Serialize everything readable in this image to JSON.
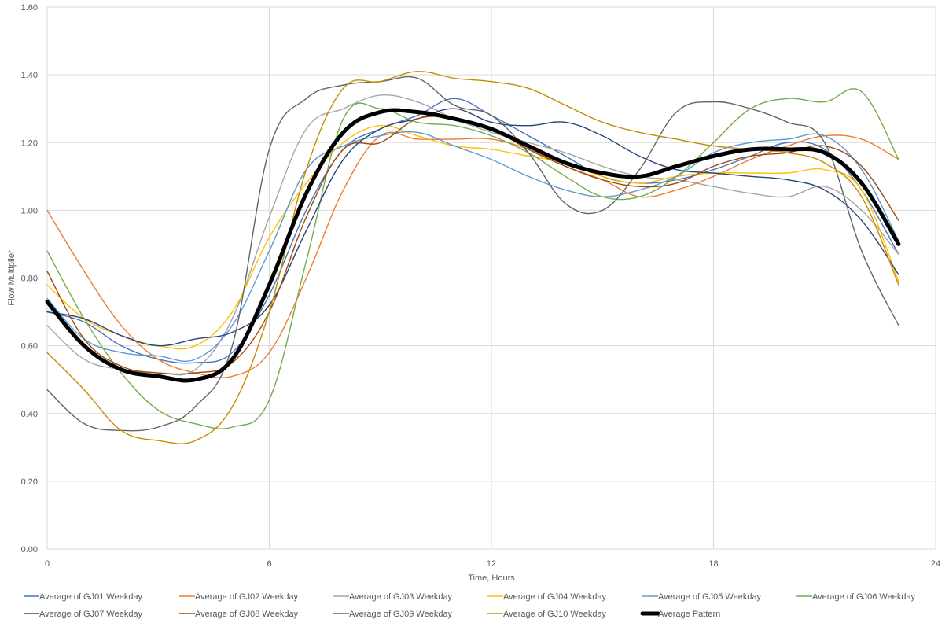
{
  "chart_data": {
    "type": "line",
    "title": "",
    "xlabel": "Time, Hours",
    "ylabel": "Flow Multiplier",
    "xlim": [
      0,
      24
    ],
    "ylim": [
      0,
      1.6
    ],
    "x_ticks": [
      0,
      6,
      12,
      18,
      24
    ],
    "y_ticks": [
      0,
      0.2,
      0.4,
      0.6,
      0.8,
      1.0,
      1.2,
      1.4,
      1.6
    ],
    "x_tick_labels": [
      "0",
      "6",
      "12",
      "18",
      "24"
    ],
    "y_tick_labels": [
      "0.00",
      "0.20",
      "0.40",
      "0.60",
      "0.80",
      "1.00",
      "1.20",
      "1.40",
      "1.60"
    ],
    "grid": true,
    "legend_position": "bottom",
    "series": [
      {
        "name": "Average of GJ01 Weekday",
        "color": "#4472c4",
        "width": 1.4,
        "x": [
          0,
          1,
          2,
          3,
          4,
          5,
          6,
          7,
          8,
          9,
          10,
          11,
          12,
          13,
          14,
          15,
          16,
          17,
          18,
          19,
          20,
          21,
          22,
          23
        ],
        "y": [
          0.7,
          0.67,
          0.6,
          0.56,
          0.55,
          0.58,
          0.75,
          1.0,
          1.18,
          1.24,
          1.28,
          1.33,
          1.28,
          1.22,
          1.16,
          1.1,
          1.08,
          1.09,
          1.12,
          1.16,
          1.2,
          1.18,
          1.06,
          0.87
        ]
      },
      {
        "name": "Average of GJ02 Weekday",
        "color": "#ed7d31",
        "width": 1.4,
        "x": [
          0,
          1,
          2,
          3,
          4,
          5,
          6,
          7,
          8,
          9,
          10,
          11,
          12,
          13,
          14,
          15,
          16,
          17,
          18,
          19,
          20,
          21,
          22,
          23
        ],
        "y": [
          1.0,
          0.82,
          0.66,
          0.56,
          0.52,
          0.51,
          0.58,
          0.8,
          1.06,
          1.22,
          1.21,
          1.21,
          1.21,
          1.18,
          1.13,
          1.09,
          1.04,
          1.06,
          1.1,
          1.15,
          1.19,
          1.22,
          1.21,
          1.15
        ]
      },
      {
        "name": "Average of GJ03 Weekday",
        "color": "#a5a5a5",
        "width": 1.4,
        "x": [
          0,
          1,
          2,
          3,
          4,
          5,
          6,
          7,
          8,
          9,
          10,
          11,
          12,
          13,
          14,
          15,
          16,
          17,
          18,
          19,
          20,
          21,
          22,
          23
        ],
        "y": [
          0.66,
          0.56,
          0.53,
          0.52,
          0.53,
          0.68,
          0.98,
          1.24,
          1.3,
          1.34,
          1.32,
          1.27,
          1.23,
          1.2,
          1.17,
          1.13,
          1.1,
          1.09,
          1.07,
          1.05,
          1.04,
          1.07,
          1.0,
          0.87
        ]
      },
      {
        "name": "Average of GJ04 Weekday",
        "color": "#ffc000",
        "width": 1.4,
        "x": [
          0,
          1,
          2,
          3,
          4,
          5,
          6,
          7,
          8,
          9,
          10,
          11,
          12,
          13,
          14,
          15,
          16,
          17,
          18,
          19,
          20,
          21,
          22,
          23
        ],
        "y": [
          0.78,
          0.68,
          0.63,
          0.6,
          0.6,
          0.7,
          0.92,
          1.08,
          1.2,
          1.25,
          1.22,
          1.19,
          1.18,
          1.16,
          1.14,
          1.1,
          1.08,
          1.1,
          1.11,
          1.11,
          1.11,
          1.12,
          1.06,
          0.79
        ]
      },
      {
        "name": "Average of GJ05 Weekday",
        "color": "#5b9bd5",
        "width": 1.4,
        "x": [
          0,
          1,
          2,
          3,
          4,
          5,
          6,
          7,
          8,
          9,
          10,
          11,
          12,
          13,
          14,
          15,
          16,
          17,
          18,
          19,
          20,
          21,
          22,
          23
        ],
        "y": [
          0.74,
          0.62,
          0.58,
          0.57,
          0.56,
          0.66,
          0.88,
          1.12,
          1.19,
          1.22,
          1.23,
          1.19,
          1.15,
          1.1,
          1.06,
          1.04,
          1.06,
          1.1,
          1.17,
          1.2,
          1.21,
          1.22,
          1.12,
          0.91
        ]
      },
      {
        "name": "Average of GJ06 Weekday",
        "color": "#70ad47",
        "width": 1.4,
        "x": [
          0,
          1,
          2,
          3,
          4,
          5,
          6,
          7,
          8,
          9,
          10,
          11,
          12,
          13,
          14,
          15,
          16,
          17,
          18,
          19,
          20,
          21,
          22,
          23
        ],
        "y": [
          0.88,
          0.68,
          0.52,
          0.41,
          0.37,
          0.36,
          0.44,
          0.85,
          1.27,
          1.3,
          1.26,
          1.25,
          1.22,
          1.17,
          1.1,
          1.04,
          1.04,
          1.1,
          1.2,
          1.3,
          1.33,
          1.32,
          1.35,
          1.15
        ]
      },
      {
        "name": "Average of GJ07 Weekday",
        "color": "#264478",
        "width": 1.4,
        "x": [
          0,
          1,
          2,
          3,
          4,
          5,
          6,
          7,
          8,
          9,
          10,
          11,
          12,
          13,
          14,
          15,
          16,
          17,
          18,
          19,
          20,
          21,
          22,
          23
        ],
        "y": [
          0.7,
          0.68,
          0.63,
          0.6,
          0.62,
          0.64,
          0.72,
          0.94,
          1.15,
          1.24,
          1.27,
          1.3,
          1.26,
          1.25,
          1.26,
          1.22,
          1.16,
          1.12,
          1.11,
          1.1,
          1.09,
          1.06,
          0.97,
          0.81
        ]
      },
      {
        "name": "Average of GJ08 Weekday",
        "color": "#9e480e",
        "width": 1.4,
        "x": [
          0,
          1,
          2,
          3,
          4,
          5,
          6,
          7,
          8,
          9,
          10,
          11,
          12,
          13,
          14,
          15,
          16,
          17,
          18,
          19,
          20,
          21,
          22,
          23
        ],
        "y": [
          0.82,
          0.62,
          0.54,
          0.52,
          0.52,
          0.55,
          0.7,
          0.98,
          1.18,
          1.2,
          1.27,
          1.27,
          1.24,
          1.18,
          1.13,
          1.09,
          1.07,
          1.08,
          1.13,
          1.16,
          1.17,
          1.19,
          1.13,
          0.97
        ]
      },
      {
        "name": "Average of GJ09 Weekday",
        "color": "#636363",
        "width": 1.4,
        "x": [
          0,
          1,
          2,
          3,
          4,
          5,
          6,
          7,
          8,
          9,
          10,
          11,
          12,
          13,
          14,
          15,
          16,
          17,
          18,
          19,
          20,
          21,
          22,
          23
        ],
        "y": [
          0.47,
          0.37,
          0.35,
          0.36,
          0.42,
          0.6,
          1.18,
          1.33,
          1.37,
          1.38,
          1.39,
          1.31,
          1.28,
          1.17,
          1.02,
          1.0,
          1.12,
          1.29,
          1.32,
          1.3,
          1.26,
          1.2,
          0.88,
          0.66
        ]
      },
      {
        "name": "Average of GJ10 Weekday",
        "color": "#c58c00",
        "width": 1.4,
        "x": [
          0,
          1,
          2,
          3,
          4,
          5,
          6,
          7,
          8,
          9,
          10,
          11,
          12,
          13,
          14,
          15,
          16,
          17,
          18,
          19,
          20,
          21,
          22,
          23
        ],
        "y": [
          0.58,
          0.47,
          0.35,
          0.32,
          0.32,
          0.42,
          0.7,
          1.12,
          1.36,
          1.38,
          1.41,
          1.39,
          1.38,
          1.36,
          1.31,
          1.26,
          1.23,
          1.21,
          1.19,
          1.18,
          1.17,
          1.14,
          1.04,
          0.78
        ]
      },
      {
        "name": "Average Pattern",
        "color": "#000000",
        "width": 5,
        "x": [
          0,
          1,
          2,
          3,
          4,
          5,
          6,
          7,
          8,
          9,
          10,
          11,
          12,
          13,
          14,
          15,
          16,
          17,
          18,
          19,
          20,
          21,
          22,
          23
        ],
        "y": [
          0.73,
          0.6,
          0.53,
          0.51,
          0.5,
          0.56,
          0.78,
          1.05,
          1.23,
          1.29,
          1.29,
          1.27,
          1.24,
          1.19,
          1.14,
          1.11,
          1.1,
          1.13,
          1.16,
          1.18,
          1.18,
          1.17,
          1.08,
          0.9
        ]
      }
    ]
  }
}
